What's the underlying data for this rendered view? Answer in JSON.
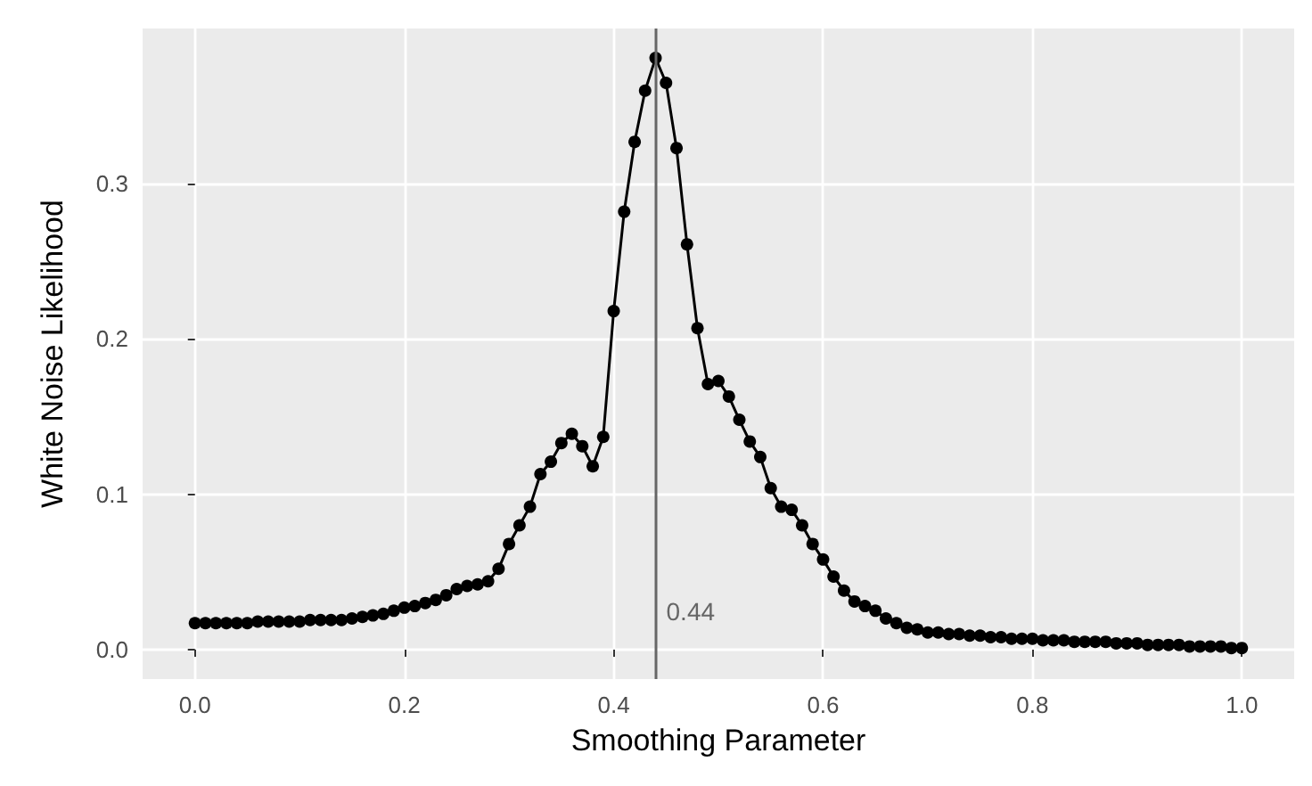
{
  "chart_data": {
    "type": "line",
    "xlabel": "Smoothing Parameter",
    "ylabel": "White Noise Likelihood",
    "x": [
      0,
      0.01,
      0.02,
      0.03,
      0.04,
      0.05,
      0.06,
      0.07,
      0.08,
      0.09,
      0.1,
      0.11,
      0.12,
      0.13,
      0.14,
      0.15,
      0.16,
      0.17,
      0.18,
      0.19,
      0.2,
      0.21,
      0.22,
      0.23,
      0.24,
      0.25,
      0.26,
      0.27,
      0.28,
      0.29,
      0.3,
      0.31,
      0.32,
      0.33,
      0.34,
      0.35,
      0.36,
      0.37,
      0.38,
      0.39,
      0.4,
      0.41,
      0.42,
      0.43,
      0.44,
      0.45,
      0.46,
      0.47,
      0.48,
      0.49,
      0.5,
      0.51,
      0.52,
      0.53,
      0.54,
      0.55,
      0.56,
      0.57,
      0.58,
      0.59,
      0.6,
      0.61,
      0.62,
      0.63,
      0.64,
      0.65,
      0.66,
      0.67,
      0.68,
      0.69,
      0.7,
      0.71,
      0.72,
      0.73,
      0.74,
      0.75,
      0.76,
      0.77,
      0.78,
      0.79,
      0.8,
      0.81,
      0.82,
      0.83,
      0.84,
      0.85,
      0.86,
      0.87,
      0.88,
      0.89,
      0.9,
      0.91,
      0.92,
      0.93,
      0.94,
      0.95,
      0.96,
      0.97,
      0.98,
      0.99,
      1
    ],
    "series": [
      {
        "color": "#000000",
        "values": [
          0.017,
          0.017,
          0.017,
          0.017,
          0.017,
          0.017,
          0.018,
          0.018,
          0.018,
          0.018,
          0.018,
          0.019,
          0.019,
          0.019,
          0.019,
          0.02,
          0.021,
          0.022,
          0.023,
          0.025,
          0.027,
          0.028,
          0.03,
          0.032,
          0.035,
          0.039,
          0.041,
          0.042,
          0.044,
          0.052,
          0.068,
          0.08,
          0.092,
          0.113,
          0.121,
          0.133,
          0.139,
          0.131,
          0.118,
          0.137,
          0.218,
          0.282,
          0.327,
          0.36,
          0.381,
          0.365,
          0.323,
          0.261,
          0.207,
          0.171,
          0.173,
          0.163,
          0.148,
          0.134,
          0.124,
          0.104,
          0.092,
          0.09,
          0.08,
          0.068,
          0.058,
          0.047,
          0.038,
          0.031,
          0.028,
          0.025,
          0.02,
          0.017,
          0.014,
          0.013,
          0.011,
          0.011,
          0.01,
          0.01,
          0.009,
          0.009,
          0.008,
          0.008,
          0.007,
          0.007,
          0.007,
          0.006,
          0.006,
          0.006,
          0.005,
          0.005,
          0.005,
          0.005,
          0.004,
          0.004,
          0.004,
          0.003,
          0.003,
          0.003,
          0.003,
          0.002,
          0.002,
          0.002,
          0.002,
          0.001,
          0.001
        ]
      }
    ],
    "xlim": [
      -0.05,
      1.05
    ],
    "ylim": [
      -0.019,
      0.4
    ],
    "xticks": [
      {
        "value": 0,
        "label": "0.0"
      },
      {
        "value": 0.2,
        "label": "0.2"
      },
      {
        "value": 0.4,
        "label": "0.4"
      },
      {
        "value": 0.6,
        "label": "0.6"
      },
      {
        "value": 0.8,
        "label": "0.8"
      },
      {
        "value": 1,
        "label": "1.0"
      }
    ],
    "yticks": [
      {
        "value": 0,
        "label": "0.0"
      },
      {
        "value": 0.1,
        "label": "0.1"
      },
      {
        "value": 0.2,
        "label": "0.2"
      },
      {
        "value": 0.3,
        "label": "0.3"
      }
    ],
    "ref_lines": [
      {
        "axis": "x",
        "value": 0.44,
        "label": "0.44",
        "color": "#666666"
      }
    ],
    "grid": true,
    "marker": "circle",
    "line_style": "solid"
  }
}
